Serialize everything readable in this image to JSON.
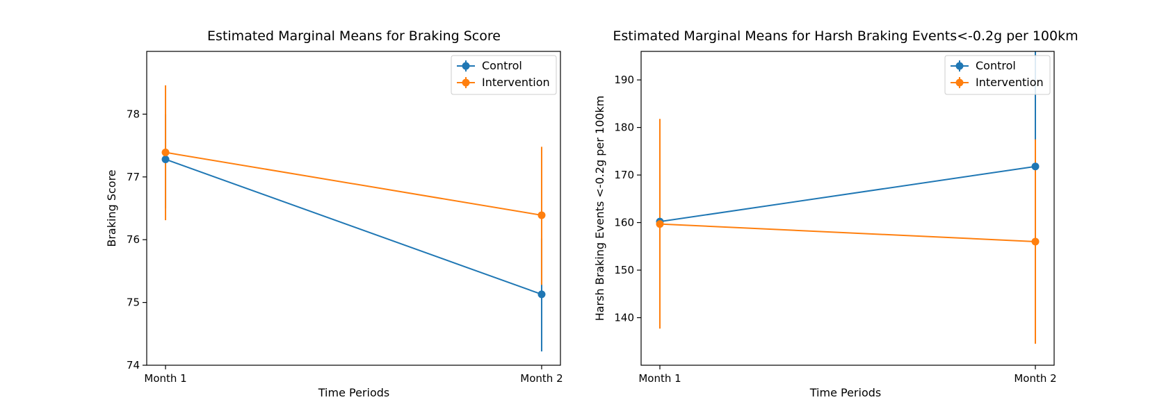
{
  "colors": {
    "control": "#1f77b4",
    "intervention": "#ff7f0e"
  },
  "chart_data": [
    {
      "type": "line",
      "title": "Estimated Marginal Means for Braking Score",
      "xlabel": "Time Periods",
      "ylabel": "Braking Score",
      "categories": [
        "Month 1",
        "Month 2"
      ],
      "ylim": [
        74,
        79
      ],
      "yticks": [
        74,
        75,
        76,
        77,
        78
      ],
      "grid": false,
      "legend_position": "top-right",
      "legend": [
        "Control",
        "Intervention"
      ],
      "series": [
        {
          "name": "Control",
          "values": [
            77.28,
            75.13
          ],
          "error_low": [
            76.5,
            74.22
          ],
          "error_high": [
            78.0,
            76.02
          ]
        },
        {
          "name": "Intervention",
          "values": [
            77.39,
            76.39
          ],
          "error_low": [
            76.31,
            75.28
          ],
          "error_high": [
            78.46,
            77.48
          ]
        }
      ]
    },
    {
      "type": "line",
      "title": "Estimated Marginal Means for Harsh Braking Events<-0.2g per 100km",
      "xlabel": "Time Periods",
      "ylabel": "Harsh Braking Events <-0.2g per 100km",
      "categories": [
        "Month 1",
        "Month 2"
      ],
      "ylim": [
        130,
        196
      ],
      "yticks": [
        140,
        150,
        160,
        170,
        180,
        190
      ],
      "grid": false,
      "legend_position": "top-right",
      "legend": [
        "Control",
        "Intervention"
      ],
      "series": [
        {
          "name": "Control",
          "values": [
            160.2,
            171.8
          ],
          "error_low": [
            150.0,
            152.5
          ],
          "error_high": [
            170.0,
            196.0
          ]
        },
        {
          "name": "Intervention",
          "values": [
            159.7,
            156.0
          ],
          "error_low": [
            137.7,
            134.5
          ],
          "error_high": [
            181.8,
            177.5
          ]
        }
      ]
    }
  ]
}
